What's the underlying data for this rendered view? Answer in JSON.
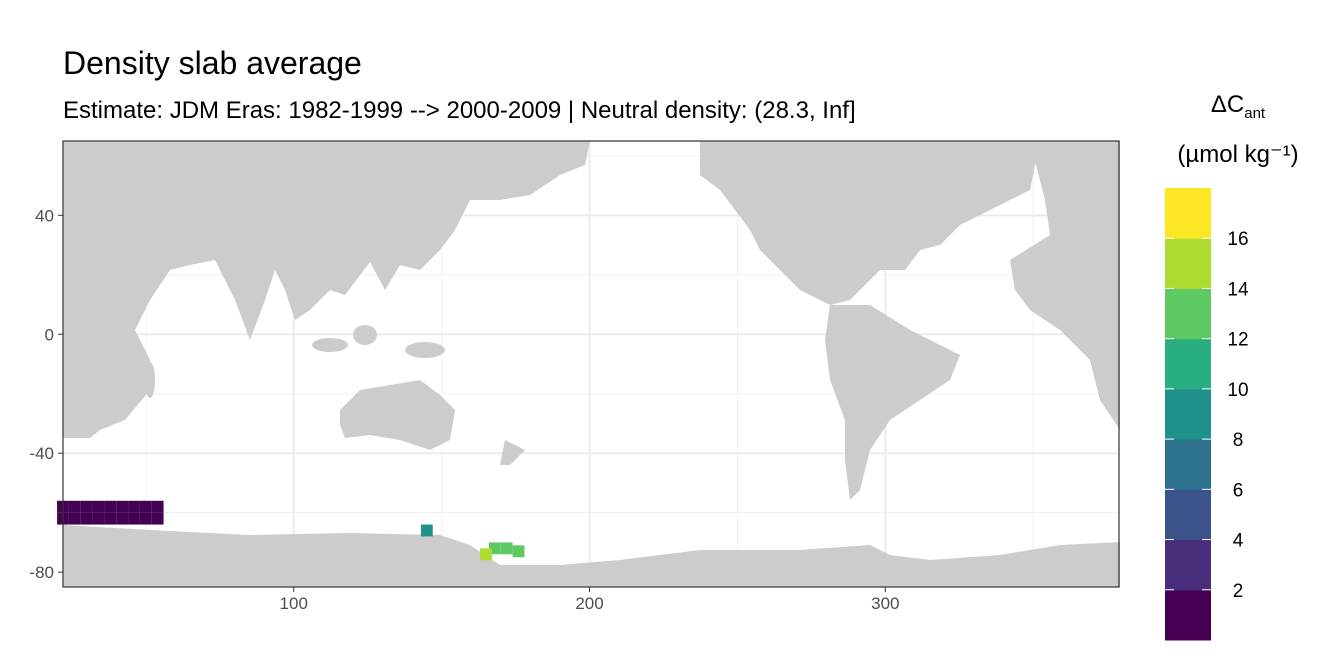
{
  "chart_data": {
    "type": "raster-map",
    "title": "Density slab average",
    "subtitle": "Estimate: JDM Eras: 1982-1999 --> 2000-2009 | Neutral density: (28.3, Inf]",
    "x": [
      22,
      26,
      30,
      34,
      38,
      42,
      46,
      50,
      54,
      22,
      26,
      30,
      34,
      38,
      42,
      46,
      50,
      54,
      145,
      168,
      172,
      176,
      165
    ],
    "y": [
      -58,
      -58,
      -58,
      -58,
      -58,
      -58,
      -58,
      -58,
      -58,
      -62,
      -62,
      -62,
      -62,
      -62,
      -62,
      -62,
      -62,
      -62,
      -66,
      -72,
      -72,
      -73,
      -74
    ],
    "values": [
      1,
      1,
      1,
      1,
      1,
      1,
      1,
      1,
      1,
      1,
      1,
      1,
      1,
      1,
      1,
      1,
      1,
      1,
      9,
      13,
      13,
      13,
      15
    ],
    "xlim": [
      22,
      379
    ],
    "ylim": [
      -85,
      65
    ],
    "xticks": [
      100,
      200,
      300
    ],
    "yticks": [
      40,
      0,
      -40,
      -80
    ],
    "x_minor_ticks": [
      50,
      150,
      250,
      350
    ],
    "y_minor_ticks": [
      60,
      20,
      -20,
      -60
    ],
    "grid": true,
    "legend": {
      "title": "ΔC",
      "title_sub": "ant",
      "unit": "(µmol kg⁻¹)",
      "limits": [
        0,
        18
      ],
      "breaks": [
        2,
        4,
        6,
        8,
        10,
        12,
        14,
        16
      ],
      "colors": [
        "#440154",
        "#472d7b",
        "#3b528b",
        "#2c728e",
        "#21918c",
        "#28ae80",
        "#5ec962",
        "#addc30",
        "#fde725"
      ]
    }
  }
}
